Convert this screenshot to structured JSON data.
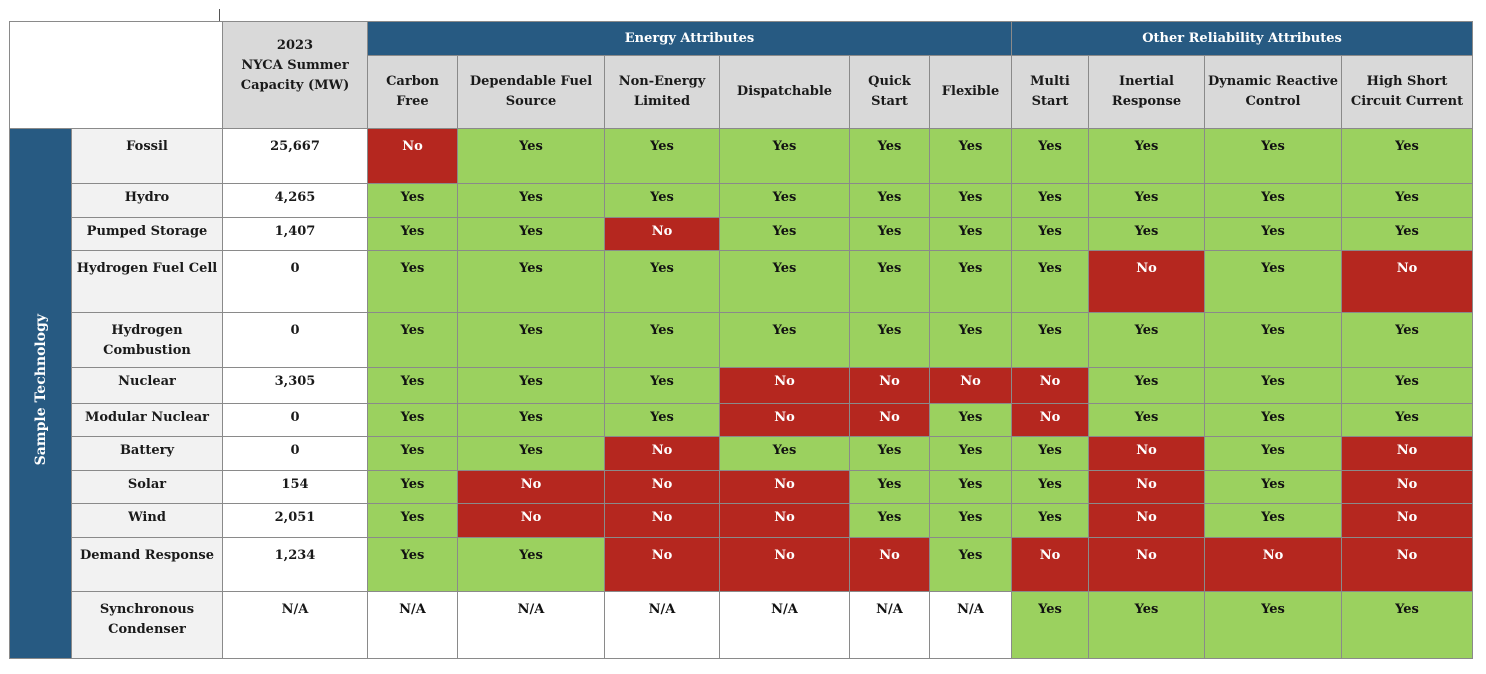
{
  "header": {
    "capacity_label": "2023\nNYCA Summer Capacity (MW)",
    "group_energy": "Energy Attributes",
    "group_other": "Other Reliability Attributes",
    "columns": [
      "Carbon Free",
      "Dependable Fuel Source",
      "Non-Energy Limited",
      "Dispatchable",
      "Quick Start",
      "Flexible",
      "Multi Start",
      "Inertial Response",
      "Dynamic Reactive Control",
      "High Short Circuit Current"
    ]
  },
  "side_label": "Sample Technology",
  "rows": [
    {
      "tech": "Fossil",
      "capacity": "25,667",
      "values": [
        "No",
        "Yes",
        "Yes",
        "Yes",
        "Yes",
        "Yes",
        "Yes",
        "Yes",
        "Yes",
        "Yes"
      ]
    },
    {
      "tech": "Hydro",
      "capacity": "4,265",
      "values": [
        "Yes",
        "Yes",
        "Yes",
        "Yes",
        "Yes",
        "Yes",
        "Yes",
        "Yes",
        "Yes",
        "Yes"
      ]
    },
    {
      "tech": "Pumped Storage",
      "capacity": "1,407",
      "values": [
        "Yes",
        "Yes",
        "No",
        "Yes",
        "Yes",
        "Yes",
        "Yes",
        "Yes",
        "Yes",
        "Yes"
      ]
    },
    {
      "tech": "Hydrogen Fuel Cell",
      "capacity": "0",
      "values": [
        "Yes",
        "Yes",
        "Yes",
        "Yes",
        "Yes",
        "Yes",
        "Yes",
        "No",
        "Yes",
        "No"
      ]
    },
    {
      "tech": "Hydrogen Combustion",
      "capacity": "0",
      "values": [
        "Yes",
        "Yes",
        "Yes",
        "Yes",
        "Yes",
        "Yes",
        "Yes",
        "Yes",
        "Yes",
        "Yes"
      ]
    },
    {
      "tech": "Nuclear",
      "capacity": "3,305",
      "values": [
        "Yes",
        "Yes",
        "Yes",
        "No",
        "No",
        "No",
        "No",
        "Yes",
        "Yes",
        "Yes"
      ]
    },
    {
      "tech": "Modular Nuclear",
      "capacity": "0",
      "values": [
        "Yes",
        "Yes",
        "Yes",
        "No",
        "No",
        "Yes",
        "No",
        "Yes",
        "Yes",
        "Yes"
      ]
    },
    {
      "tech": "Battery",
      "capacity": "0",
      "values": [
        "Yes",
        "Yes",
        "No",
        "Yes",
        "Yes",
        "Yes",
        "Yes",
        "No",
        "Yes",
        "No"
      ]
    },
    {
      "tech": "Solar",
      "capacity": "154",
      "values": [
        "Yes",
        "No",
        "No",
        "No",
        "Yes",
        "Yes",
        "Yes",
        "No",
        "Yes",
        "No"
      ]
    },
    {
      "tech": "Wind",
      "capacity": "2,051",
      "values": [
        "Yes",
        "No",
        "No",
        "No",
        "Yes",
        "Yes",
        "Yes",
        "No",
        "Yes",
        "No"
      ]
    },
    {
      "tech": "Demand Response",
      "capacity": "1,234",
      "values": [
        "Yes",
        "Yes",
        "No",
        "No",
        "No",
        "Yes",
        "No",
        "No",
        "No",
        "No"
      ]
    },
    {
      "tech": "Synchronous Condenser",
      "capacity": "N/A",
      "values": [
        "N/A",
        "N/A",
        "N/A",
        "N/A",
        "N/A",
        "N/A",
        "Yes",
        "Yes",
        "Yes",
        "Yes"
      ]
    }
  ],
  "colors": {
    "yes": "#9bd15f",
    "no": "#b5271f",
    "header": "#275a82",
    "grey": "#d9d9d9"
  }
}
